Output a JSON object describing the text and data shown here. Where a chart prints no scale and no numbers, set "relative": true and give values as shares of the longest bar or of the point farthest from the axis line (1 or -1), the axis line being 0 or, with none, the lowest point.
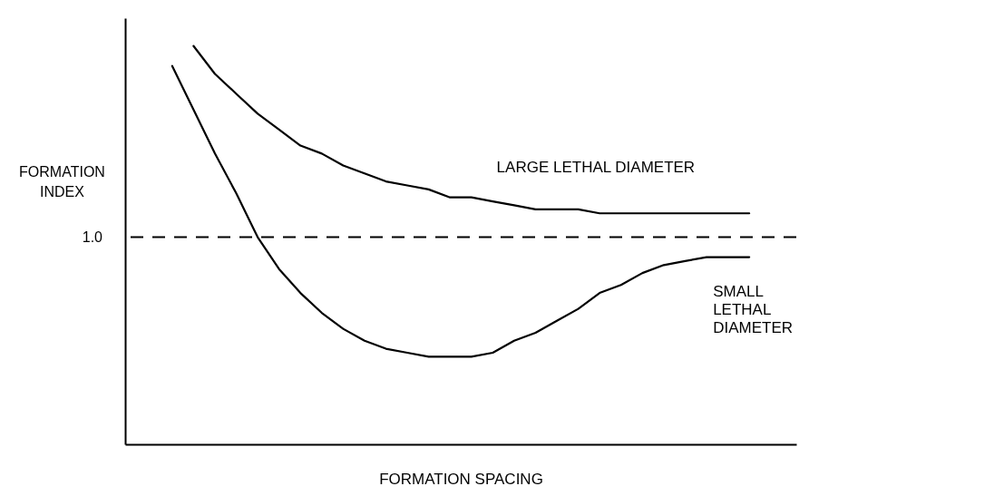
{
  "chart_data": {
    "type": "line",
    "relative": true,
    "xlabel": "FORMATION SPACING",
    "ylabel": "FORMATION INDEX",
    "categories": [
      null,
      null,
      null,
      null,
      null,
      null,
      null,
      null,
      null,
      null,
      null,
      null,
      null,
      null,
      null,
      null,
      null,
      null,
      null,
      null,
      null,
      null,
      null,
      null,
      null,
      null,
      null,
      null
    ],
    "series": [
      {
        "name": "LARGE LETHAL DIAMETER",
        "color": "#000000",
        "values": [
          null,
          1,
          0.93,
          0.88,
          0.83,
          0.79,
          0.75,
          0.73,
          0.7,
          0.68,
          0.66,
          0.65,
          0.64,
          0.62,
          0.62,
          0.61,
          0.6,
          0.59,
          0.59,
          0.59,
          0.58,
          0.58,
          0.58,
          0.58,
          0.58,
          0.58,
          0.58,
          0.58
        ]
      },
      {
        "name": "SMALL LETHAL DIAMETER",
        "color": "#000000",
        "values": [
          0.95,
          0.84,
          0.73,
          0.63,
          0.52,
          0.44,
          0.38,
          0.33,
          0.29,
          0.26,
          0.24,
          0.23,
          0.22,
          0.22,
          0.22,
          0.23,
          0.26,
          0.28,
          0.31,
          0.34,
          0.38,
          0.4,
          0.43,
          0.45,
          0.46,
          0.47,
          0.47,
          0.47
        ]
      }
    ],
    "ref_lines": [
      {
        "axis": "y",
        "value": 0.52,
        "line_style": "dashed",
        "color": "#000000"
      }
    ],
    "annotations": [
      "1.0"
    ],
    "grid": false,
    "marker": "none",
    "line_style": "solid"
  }
}
